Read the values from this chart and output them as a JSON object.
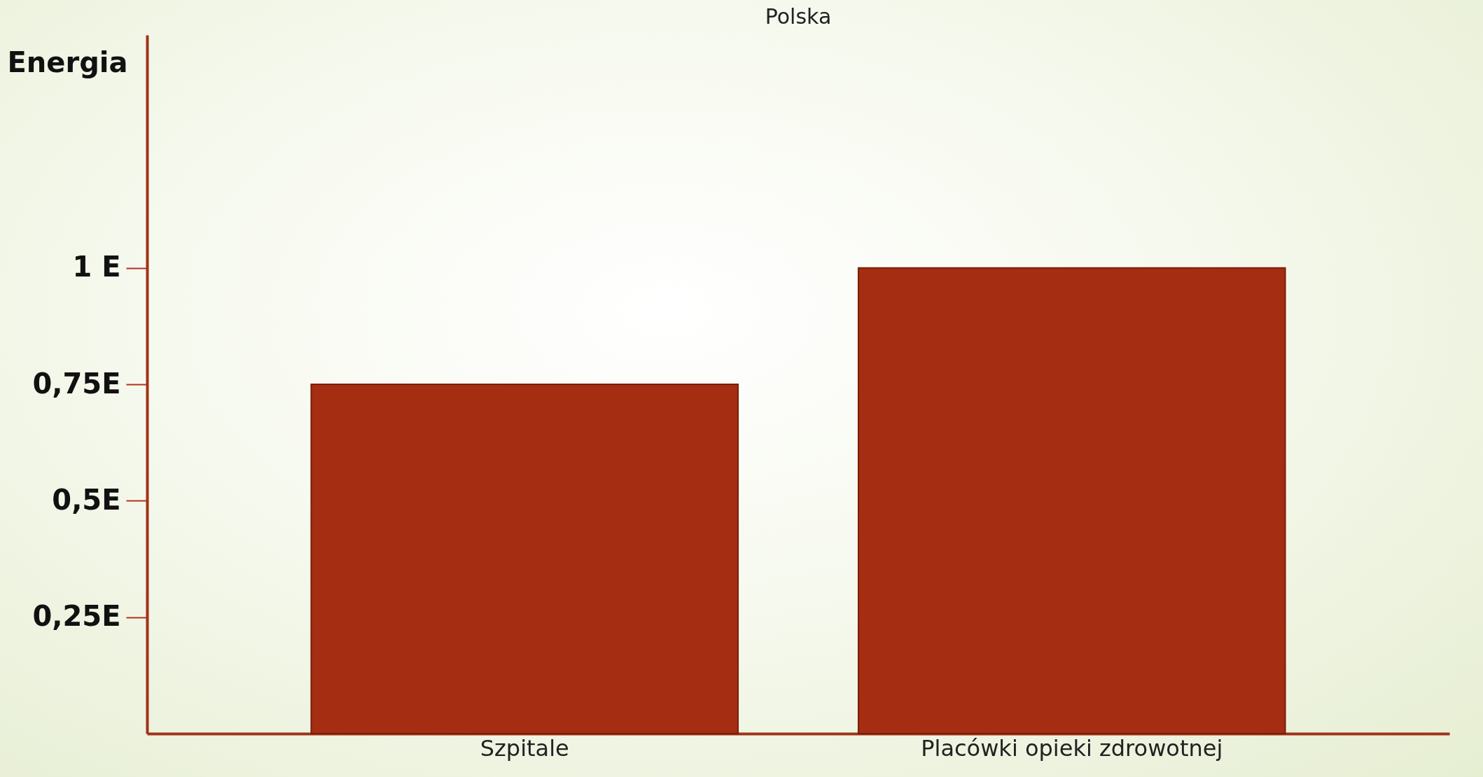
{
  "chart_data": {
    "type": "bar",
    "title": "Polska",
    "ylabel": "Energia",
    "categories": [
      "Szpitale",
      "Placówki opieki zdrowotnej"
    ],
    "values": [
      0.75,
      1.0
    ],
    "color": "#a52d11",
    "ylim": [
      0,
      1.5
    ],
    "yticks": [
      {
        "value": 0.25,
        "label": "0,25E"
      },
      {
        "value": 0.5,
        "label": "0,5E"
      },
      {
        "value": 0.75,
        "label": "0,75E"
      },
      {
        "value": 1,
        "label": "1 E"
      }
    ],
    "grid": false
  }
}
